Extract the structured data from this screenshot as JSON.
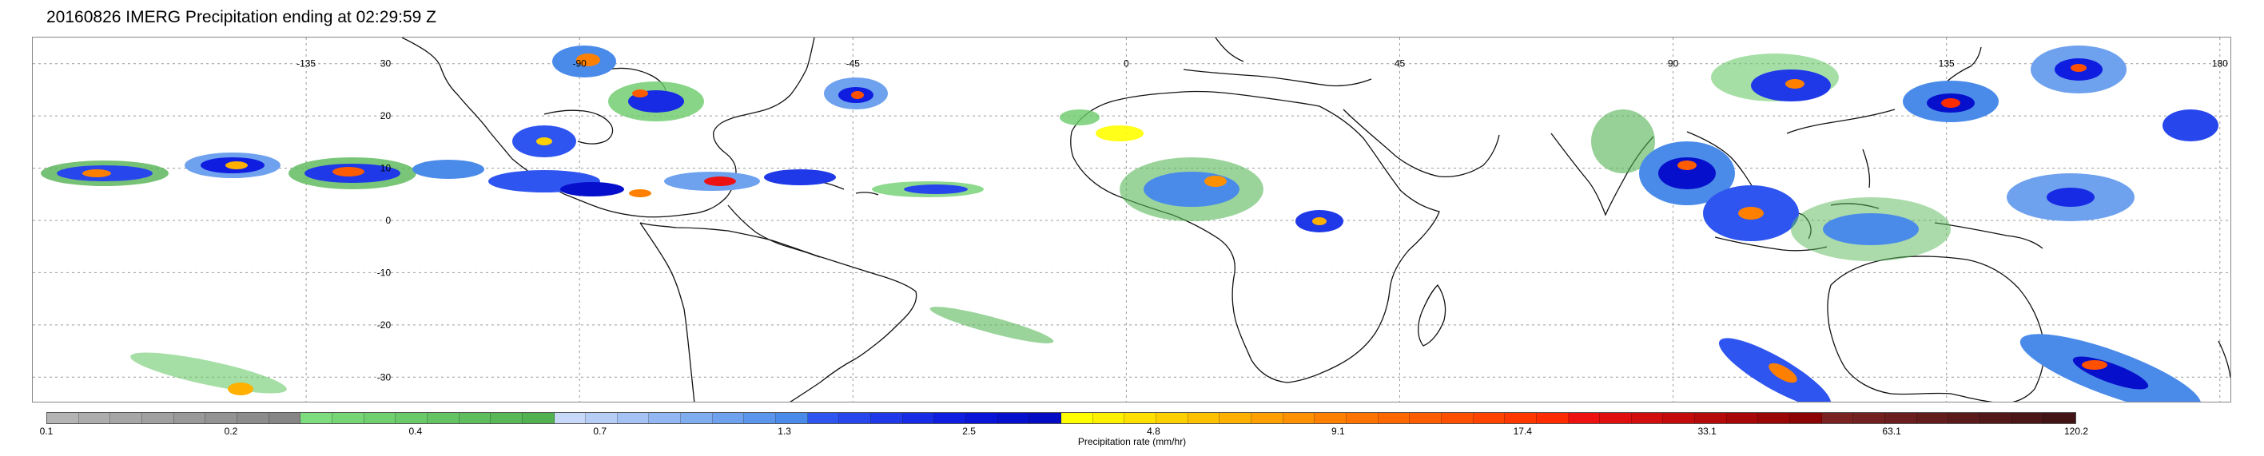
{
  "title": "20160826 IMERG Precipitation ending at 02:29:59 Z",
  "map": {
    "lat_ticks": [
      "30",
      "20",
      "10",
      "0",
      "-10",
      "-20",
      "-30"
    ],
    "lon_ticks": [
      "-135",
      "-90",
      "-45",
      "0",
      "45",
      "90",
      "135",
      "180"
    ]
  },
  "colorbar": {
    "label": "Precipitation rate (mm/hr)",
    "tick_labels": [
      "0.1",
      "0.2",
      "0.4",
      "0.7",
      "1.3",
      "2.5",
      "4.8",
      "9.1",
      "17.4",
      "33.1",
      "63.1",
      "120.2"
    ],
    "colors": [
      "#b4b4b4",
      "#adadad",
      "#a6a6a6",
      "#a0a0a0",
      "#999999",
      "#939393",
      "#8c8c8c",
      "#868686",
      "#7ddc7d",
      "#76d676",
      "#70d070",
      "#6aca6a",
      "#64c464",
      "#5ebe5e",
      "#58b858",
      "#52b252",
      "#c8d8f8",
      "#b6cdf6",
      "#a4c2f4",
      "#92b7f2",
      "#80acf0",
      "#6ea1ee",
      "#5c96ec",
      "#4a8bea",
      "#2f55f0",
      "#2747ec",
      "#1f39e8",
      "#172be4",
      "#0f1de0",
      "#0a14d6",
      "#0610cc",
      "#030cc2",
      "#ffff00",
      "#fff000",
      "#ffe000",
      "#ffd000",
      "#ffc000",
      "#ffb000",
      "#ffa000",
      "#ff9000",
      "#ff8000",
      "#ff7400",
      "#ff6800",
      "#ff5c00",
      "#ff5000",
      "#ff4400",
      "#ff3800",
      "#ff2c00",
      "#ee1111",
      "#e00f0f",
      "#d20d0d",
      "#c40b0b",
      "#b60909",
      "#a80707",
      "#9a0505",
      "#8c0303",
      "#7a2222",
      "#722020",
      "#6a1e1e",
      "#621c1c",
      "#5a1a1a",
      "#521818",
      "#4a1616",
      "#421414"
    ]
  }
}
